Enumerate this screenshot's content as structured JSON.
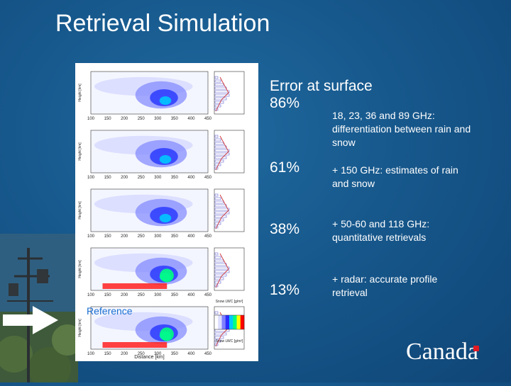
{
  "slide": {
    "title": "Retrieval Simulation",
    "reference_label": "Reference",
    "brand": "Canada"
  },
  "error_block": {
    "heading": "Error at surface",
    "rows": [
      {
        "percent": "86%",
        "description": "18, 23, 36 and 89 GHz: differentiation between rain and snow"
      },
      {
        "percent": "61%",
        "description": "+ 150 GHz: estimates of rain and snow"
      },
      {
        "percent": "38%",
        "description": "+ 50-60 and 118 GHz: quantitative retrievals"
      },
      {
        "percent": "13%",
        "description": "+ radar: accurate profile retrieval"
      }
    ]
  },
  "figure": {
    "y_label": "Height [km]",
    "x_label": "Distance [km]",
    "x_ticks": [
      "100",
      "150",
      "200",
      "250",
      "300",
      "350",
      "400",
      "450"
    ],
    "side_axis_label": "Snow LWC [g/m³]",
    "colorbar_label": "Snow LWC [g/m³]",
    "colorbar_colors": [
      "#ffffff",
      "#dcdcff",
      "#8080ff",
      "#2b2bff",
      "#00c8ff",
      "#00ff80",
      "#ffff00",
      "#ff0000"
    ]
  }
}
